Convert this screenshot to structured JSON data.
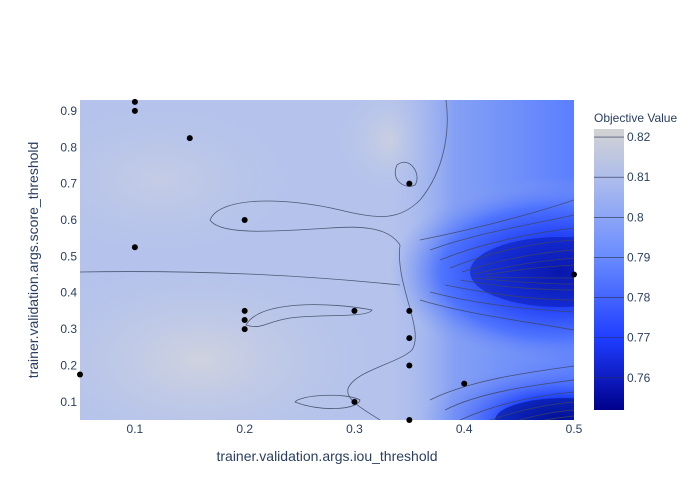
{
  "chart_data": {
    "type": "contour",
    "xlabel": "trainer.validation.args.iou_threshold",
    "ylabel": "trainer.validation.args.score_threshold",
    "xlim": [
      0.05,
      0.5
    ],
    "ylim": [
      0.05,
      0.93
    ],
    "x_ticks": [
      "0.1",
      "0.2",
      "0.3",
      "0.4",
      "0.5"
    ],
    "y_ticks": [
      "0.1",
      "0.2",
      "0.3",
      "0.4",
      "0.5",
      "0.6",
      "0.7",
      "0.8",
      "0.9"
    ],
    "colorbar": {
      "title": "Objective Value",
      "range": [
        0.752,
        0.822
      ],
      "ticks": [
        "0.76",
        "0.77",
        "0.78",
        "0.79",
        "0.8",
        "0.81",
        "0.82"
      ],
      "colors": [
        "#00008b",
        "#1e3cff",
        "#6a8dff",
        "#a8b9ee",
        "#d3d3d3"
      ]
    },
    "points": [
      {
        "x": 0.1,
        "y": 0.925
      },
      {
        "x": 0.1,
        "y": 0.9
      },
      {
        "x": 0.15,
        "y": 0.825
      },
      {
        "x": 0.35,
        "y": 0.7
      },
      {
        "x": 0.2,
        "y": 0.6
      },
      {
        "x": 0.1,
        "y": 0.525
      },
      {
        "x": 0.5,
        "y": 0.45
      },
      {
        "x": 0.2,
        "y": 0.35
      },
      {
        "x": 0.3,
        "y": 0.35
      },
      {
        "x": 0.35,
        "y": 0.35
      },
      {
        "x": 0.2,
        "y": 0.325
      },
      {
        "x": 0.2,
        "y": 0.3
      },
      {
        "x": 0.35,
        "y": 0.275
      },
      {
        "x": 0.35,
        "y": 0.2
      },
      {
        "x": 0.05,
        "y": 0.175
      },
      {
        "x": 0.4,
        "y": 0.15
      },
      {
        "x": 0.3,
        "y": 0.1
      },
      {
        "x": 0.35,
        "y": 0.05
      }
    ]
  }
}
